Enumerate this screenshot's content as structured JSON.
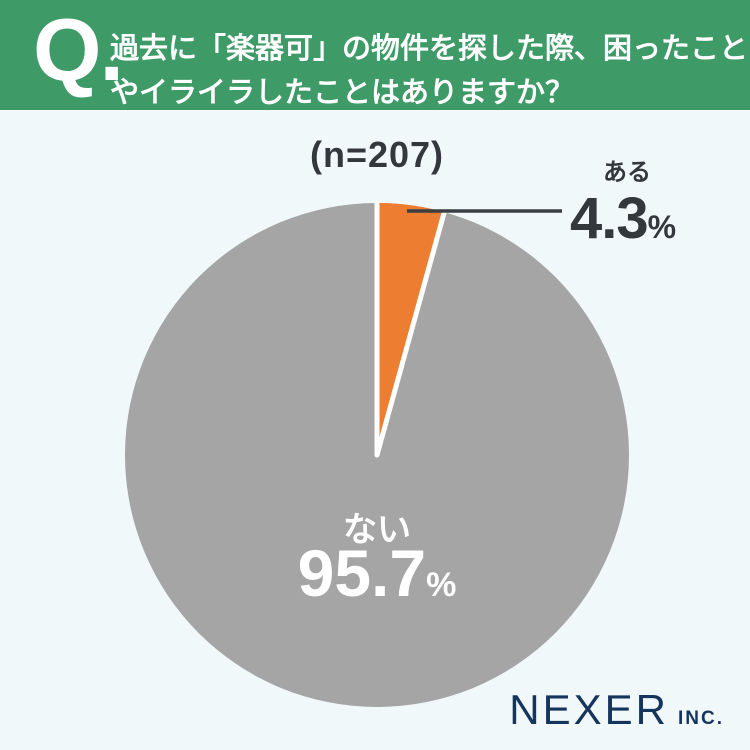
{
  "header": {
    "q_mark": "Q.",
    "question_line1": "過去に「楽器可」の物件を探した際、困ったこと",
    "question_line2": "やイライラしたことはありますか？"
  },
  "sample_size_label": "(n=207)",
  "chart_data": {
    "type": "pie",
    "title": "過去に「楽器可」の物件を探した際、困ったことやイライラしたことはありますか？",
    "n": 207,
    "start_angle_deg": 0,
    "direction": "clockwise",
    "slices": [
      {
        "label": "ある",
        "value": 4.3,
        "color": "#EC7D31",
        "label_position": "outside-right-callout"
      },
      {
        "label": "ない",
        "value": 95.7,
        "color": "#A5A5A5",
        "label_position": "inside-center"
      }
    ],
    "percent_sign": "%",
    "legend": "none",
    "slice_border_color": "#FFFFFF"
  },
  "brand": {
    "name": "NEXER",
    "suffix": "INC."
  },
  "colors": {
    "background": "#F0F8FA",
    "header_bg": "#3E9A66",
    "text_dark": "#33383D",
    "navy": "#16355C",
    "white": "#FFFFFF",
    "callout_line": "#3A3F44"
  }
}
